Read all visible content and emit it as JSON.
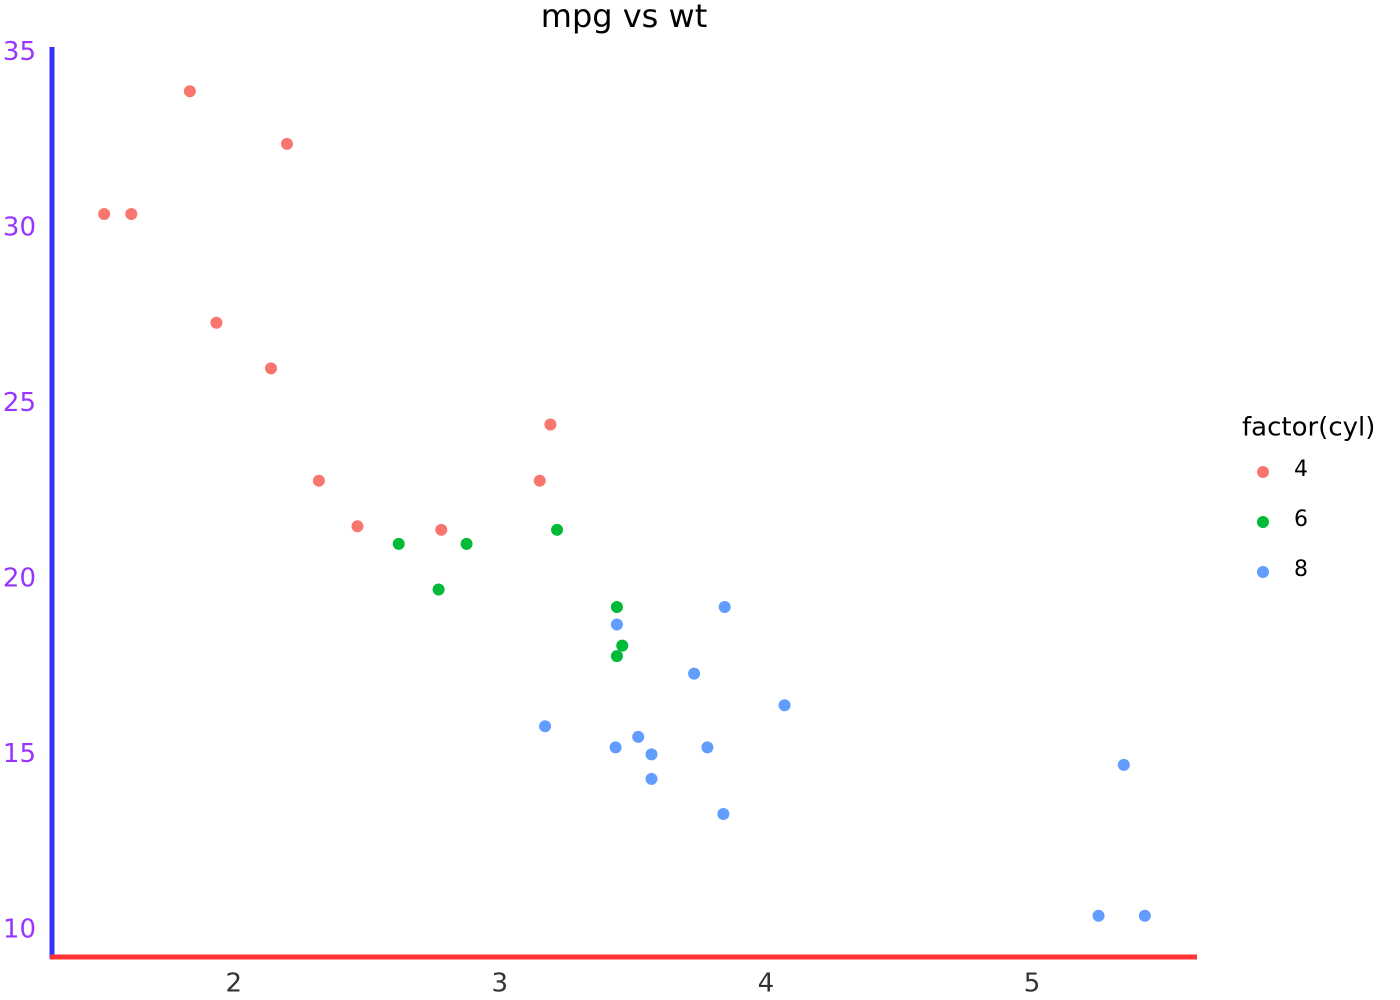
{
  "chart_data": {
    "type": "scatter",
    "title": "mpg vs wt",
    "legend_title": "factor(cyl)",
    "legend_position": "right",
    "xlim": [
      1.317,
      5.62
    ],
    "xticks": [
      2,
      3,
      4,
      5
    ],
    "ylim": [
      9.225,
      35.075
    ],
    "yticks": [
      10,
      15,
      20,
      25,
      30,
      35
    ],
    "grid": false,
    "x_axis_color": "#ff3333",
    "y_axis_color": "#3333ff",
    "ytick_color": "#9933ff",
    "xtick_color": "#333333",
    "series": [
      {
        "name": "4",
        "color": "#f8766d",
        "x": [
          2.32,
          3.19,
          3.15,
          2.2,
          1.615,
          1.835,
          2.465,
          1.935,
          2.14,
          1.513,
          2.78
        ],
        "values": [
          22.8,
          24.4,
          22.8,
          32.4,
          30.4,
          33.9,
          21.5,
          27.3,
          26.0,
          30.4,
          21.4
        ]
      },
      {
        "name": "6",
        "color": "#00ba38",
        "x": [
          2.62,
          2.875,
          3.215,
          3.46,
          3.44,
          3.44,
          2.77
        ],
        "values": [
          21.0,
          21.0,
          21.4,
          18.1,
          19.2,
          17.8,
          19.7
        ]
      },
      {
        "name": "8",
        "color": "#619cff",
        "x": [
          3.44,
          3.57,
          4.07,
          3.73,
          3.78,
          5.25,
          5.424,
          5.345,
          3.52,
          3.435,
          3.84,
          3.845,
          3.17,
          3.57
        ],
        "values": [
          18.7,
          14.3,
          16.4,
          17.3,
          15.2,
          10.4,
          10.4,
          14.7,
          15.5,
          15.2,
          13.3,
          19.2,
          15.8,
          15.0
        ]
      }
    ]
  }
}
